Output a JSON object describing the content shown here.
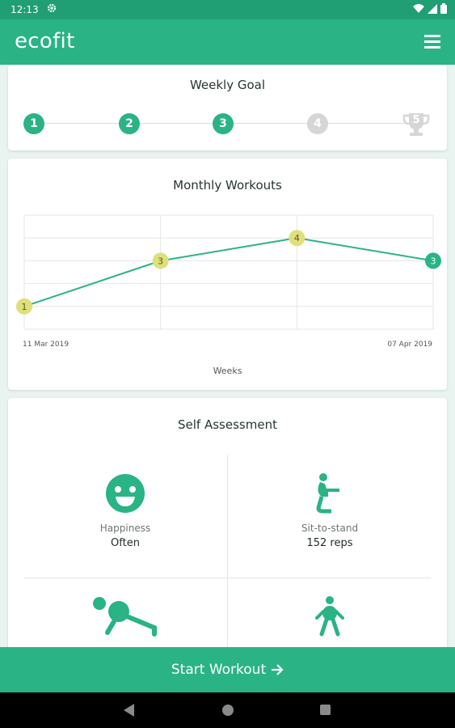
{
  "status": {
    "time": "12:13"
  },
  "app": {
    "title": "ecofit"
  },
  "weekly_goal": {
    "title": "Weekly Goal",
    "steps": [
      {
        "label": "1",
        "done": true
      },
      {
        "label": "2",
        "done": true
      },
      {
        "label": "3",
        "done": true
      },
      {
        "label": "4",
        "done": false
      },
      {
        "label": "5",
        "done": false,
        "trophy": true
      }
    ],
    "colors": {
      "done": "#2ab384",
      "pending": "#d6d6d6"
    }
  },
  "monthly": {
    "title": "Monthly Workouts",
    "date_start": "11 Mar 2019",
    "date_end": "07 Apr 2019",
    "xlabel": "Weeks"
  },
  "chart_data": {
    "type": "line",
    "title": "Monthly Workouts",
    "xlabel": "Weeks",
    "x": [
      "11 Mar 2019",
      "",
      "",
      "07 Apr 2019"
    ],
    "values": [
      1,
      3,
      4,
      3
    ],
    "point_labels": [
      "1",
      "3",
      "4",
      "3"
    ],
    "point_colors": [
      "#dfe07a",
      "#dfe07a",
      "#dfe07a",
      "#2ab384"
    ],
    "line_color": "#2ab384",
    "ylim": [
      0,
      5
    ],
    "grid": true
  },
  "assessment": {
    "title": "Self Assessment",
    "items": [
      {
        "label": "Happiness",
        "value": "Often",
        "icon": "smiley-icon"
      },
      {
        "label": "Sit-to-stand",
        "value": "152 reps",
        "icon": "sit-to-stand-icon"
      },
      {
        "label": "",
        "value": "",
        "icon": "plank-icon"
      },
      {
        "label": "",
        "value": "",
        "icon": "walking-icon"
      }
    ]
  },
  "start_button": {
    "label": "Start Workout",
    "icon": "arrow-right-icon"
  },
  "accent": "#2ab384"
}
